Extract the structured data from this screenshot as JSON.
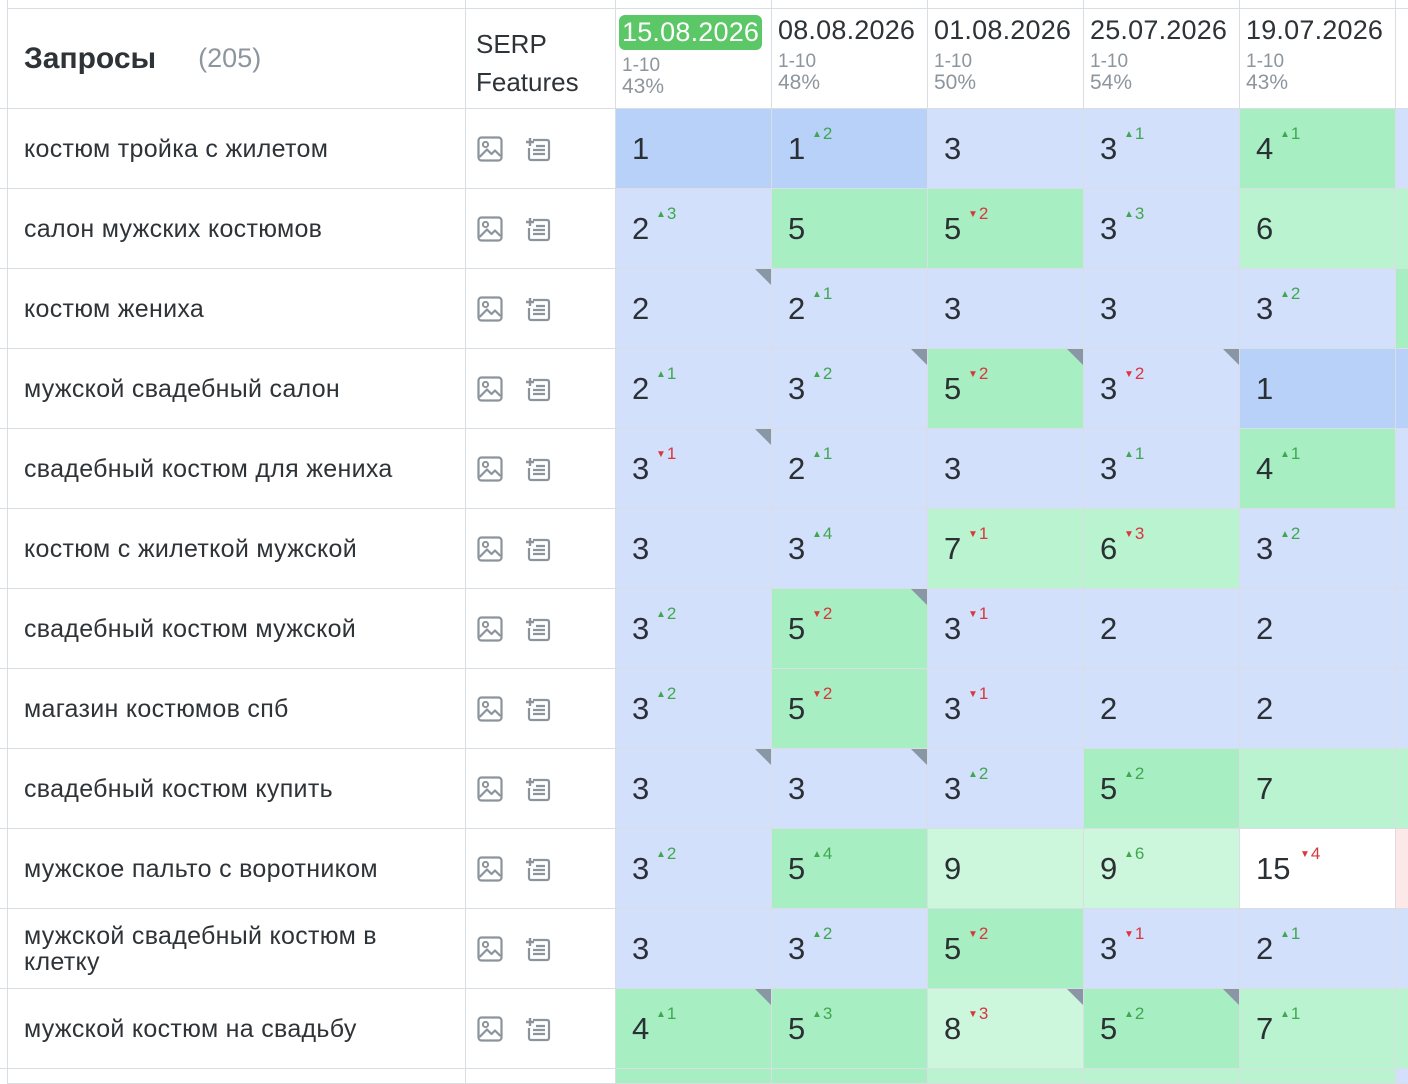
{
  "header": {
    "queries_title": "Запросы",
    "queries_count": "(205)",
    "serp_title_line1": "SERP",
    "serp_title_line2": "Features"
  },
  "dates": [
    {
      "date": "15.08.2026",
      "range": "1-10",
      "percent": "43%",
      "current": true
    },
    {
      "date": "08.08.2026",
      "range": "1-10",
      "percent": "48%",
      "current": false
    },
    {
      "date": "01.08.2026",
      "range": "1-10",
      "percent": "50%",
      "current": false
    },
    {
      "date": "25.07.2026",
      "range": "1-10",
      "percent": "54%",
      "current": false
    },
    {
      "date": "19.07.2026",
      "range": "1-10",
      "percent": "43%",
      "current": false
    }
  ],
  "rows": [
    {
      "query": "костюм тройка с жилетом",
      "cells": [
        {
          "v": "1",
          "d": "",
          "c": "b1"
        },
        {
          "v": "1",
          "d": "2",
          "dir": "up",
          "c": "b1"
        },
        {
          "v": "3",
          "d": "",
          "c": "b2"
        },
        {
          "v": "3",
          "d": "1",
          "dir": "up",
          "c": "b2"
        },
        {
          "v": "4",
          "d": "1",
          "dir": "up",
          "c": "g1"
        }
      ],
      "extra": "b2"
    },
    {
      "query": "салон мужских костюмов",
      "cells": [
        {
          "v": "2",
          "d": "3",
          "dir": "up",
          "c": "b2"
        },
        {
          "v": "5",
          "d": "",
          "c": "g1"
        },
        {
          "v": "5",
          "d": "2",
          "dir": "dn",
          "c": "g1"
        },
        {
          "v": "3",
          "d": "3",
          "dir": "up",
          "c": "b2"
        },
        {
          "v": "6",
          "d": "",
          "c": "g2"
        }
      ],
      "extra": "g2"
    },
    {
      "query": "костюм жениха",
      "cells": [
        {
          "v": "2",
          "d": "",
          "c": "b2",
          "corner": true
        },
        {
          "v": "2",
          "d": "1",
          "dir": "up",
          "c": "b2"
        },
        {
          "v": "3",
          "d": "",
          "c": "b2"
        },
        {
          "v": "3",
          "d": "",
          "c": "b2"
        },
        {
          "v": "3",
          "d": "2",
          "dir": "up",
          "c": "b2"
        }
      ],
      "extra": "g1"
    },
    {
      "query": "мужской свадебный салон",
      "cells": [
        {
          "v": "2",
          "d": "1",
          "dir": "up",
          "c": "b2"
        },
        {
          "v": "3",
          "d": "2",
          "dir": "up",
          "c": "b2",
          "corner": true
        },
        {
          "v": "5",
          "d": "2",
          "dir": "dn",
          "c": "g1",
          "corner": true
        },
        {
          "v": "3",
          "d": "2",
          "dir": "dn",
          "c": "b2",
          "corner": true
        },
        {
          "v": "1",
          "d": "",
          "c": "b1"
        }
      ],
      "extra": "b1"
    },
    {
      "query": "свадебный костюм для жениха",
      "cells": [
        {
          "v": "3",
          "d": "1",
          "dir": "dn",
          "c": "b2",
          "corner": true
        },
        {
          "v": "2",
          "d": "1",
          "dir": "up",
          "c": "b2"
        },
        {
          "v": "3",
          "d": "",
          "c": "b2"
        },
        {
          "v": "3",
          "d": "1",
          "dir": "up",
          "c": "b2"
        },
        {
          "v": "4",
          "d": "1",
          "dir": "up",
          "c": "g1"
        }
      ],
      "extra": "b2"
    },
    {
      "query": "костюм с жилеткой мужской",
      "cells": [
        {
          "v": "3",
          "d": "",
          "c": "b2"
        },
        {
          "v": "3",
          "d": "4",
          "dir": "up",
          "c": "b2"
        },
        {
          "v": "7",
          "d": "1",
          "dir": "dn",
          "c": "g2"
        },
        {
          "v": "6",
          "d": "3",
          "dir": "dn",
          "c": "g2"
        },
        {
          "v": "3",
          "d": "2",
          "dir": "up",
          "c": "b2"
        }
      ],
      "extra": "b2"
    },
    {
      "query": "свадебный костюм мужской",
      "cells": [
        {
          "v": "3",
          "d": "2",
          "dir": "up",
          "c": "b2"
        },
        {
          "v": "5",
          "d": "2",
          "dir": "dn",
          "c": "g1",
          "corner": true
        },
        {
          "v": "3",
          "d": "1",
          "dir": "dn",
          "c": "b2"
        },
        {
          "v": "2",
          "d": "",
          "c": "b2"
        },
        {
          "v": "2",
          "d": "",
          "c": "b2"
        }
      ],
      "extra": "b2"
    },
    {
      "query": "магазин костюмов спб",
      "cells": [
        {
          "v": "3",
          "d": "2",
          "dir": "up",
          "c": "b2"
        },
        {
          "v": "5",
          "d": "2",
          "dir": "dn",
          "c": "g1"
        },
        {
          "v": "3",
          "d": "1",
          "dir": "dn",
          "c": "b2"
        },
        {
          "v": "2",
          "d": "",
          "c": "b2"
        },
        {
          "v": "2",
          "d": "",
          "c": "b2"
        }
      ],
      "extra": "b2"
    },
    {
      "query": "свадебный костюм купить",
      "cells": [
        {
          "v": "3",
          "d": "",
          "c": "b2",
          "corner": true
        },
        {
          "v": "3",
          "d": "",
          "c": "b2",
          "corner": true
        },
        {
          "v": "3",
          "d": "2",
          "dir": "up",
          "c": "b2"
        },
        {
          "v": "5",
          "d": "2",
          "dir": "up",
          "c": "g1"
        },
        {
          "v": "7",
          "d": "",
          "c": "g2"
        }
      ],
      "extra": "g2"
    },
    {
      "query": "мужское пальто с воротником",
      "cells": [
        {
          "v": "3",
          "d": "2",
          "dir": "up",
          "c": "b2"
        },
        {
          "v": "5",
          "d": "4",
          "dir": "up",
          "c": "g1"
        },
        {
          "v": "9",
          "d": "",
          "c": "g3"
        },
        {
          "v": "9",
          "d": "6",
          "dir": "up",
          "c": "g3"
        },
        {
          "v": "15",
          "d": "4",
          "dir": "dn",
          "c": "w"
        }
      ],
      "extra": "pk"
    },
    {
      "query": "мужской свадебный костюм в клетку",
      "cells": [
        {
          "v": "3",
          "d": "",
          "c": "b2"
        },
        {
          "v": "3",
          "d": "2",
          "dir": "up",
          "c": "b2"
        },
        {
          "v": "5",
          "d": "2",
          "dir": "dn",
          "c": "g1"
        },
        {
          "v": "3",
          "d": "1",
          "dir": "dn",
          "c": "b2"
        },
        {
          "v": "2",
          "d": "1",
          "dir": "up",
          "c": "b2"
        }
      ],
      "extra": "b2"
    },
    {
      "query": "мужской костюм на свадьбу",
      "cells": [
        {
          "v": "4",
          "d": "1",
          "dir": "up",
          "c": "g1",
          "corner": true
        },
        {
          "v": "5",
          "d": "3",
          "dir": "up",
          "c": "g1"
        },
        {
          "v": "8",
          "d": "3",
          "dir": "dn",
          "c": "g3",
          "corner": true
        },
        {
          "v": "5",
          "d": "2",
          "dir": "up",
          "c": "g1",
          "corner": true
        },
        {
          "v": "7",
          "d": "1",
          "dir": "up",
          "c": "g2"
        }
      ],
      "extra": "g2"
    }
  ],
  "footer_colors": [
    "g1",
    "g1",
    "g2",
    "g2",
    "g2"
  ],
  "icons": {
    "image": "image-icon",
    "snippet": "featured-snippet-icon"
  }
}
